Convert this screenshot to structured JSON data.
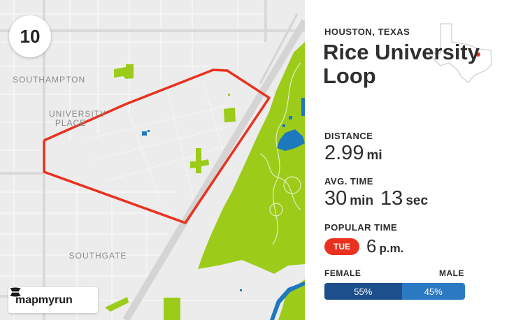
{
  "map": {
    "rank": "10",
    "labels": {
      "southampton": "SOUTHAMPTON",
      "university_place": "UNIVERSITY PLACE",
      "southgate": "SOUTHGATE"
    },
    "brand": "mapmyrun",
    "route_color": "#e8321f",
    "park_color": "#9ccb19",
    "water_color": "#1e78be"
  },
  "panel": {
    "city": "HOUSTON, TEXAS",
    "title": "Rice University Loop",
    "distance": {
      "label": "DISTANCE",
      "value": "2.99",
      "unit": "mi"
    },
    "avg_time": {
      "label": "AVG. TIME",
      "minutes": "30",
      "min_unit": "min",
      "seconds": "13",
      "sec_unit": "sec"
    },
    "popular_time": {
      "label": "POPULAR TIME",
      "day": "TUE",
      "hour": "6",
      "hour_unit": "p.m."
    },
    "gender": {
      "female_label": "FEMALE",
      "male_label": "MALE",
      "female_pct": "55%",
      "male_pct": "45%",
      "female_share": 0.55,
      "female_color": "#1d4f8c",
      "male_color": "#2b79c2"
    }
  }
}
